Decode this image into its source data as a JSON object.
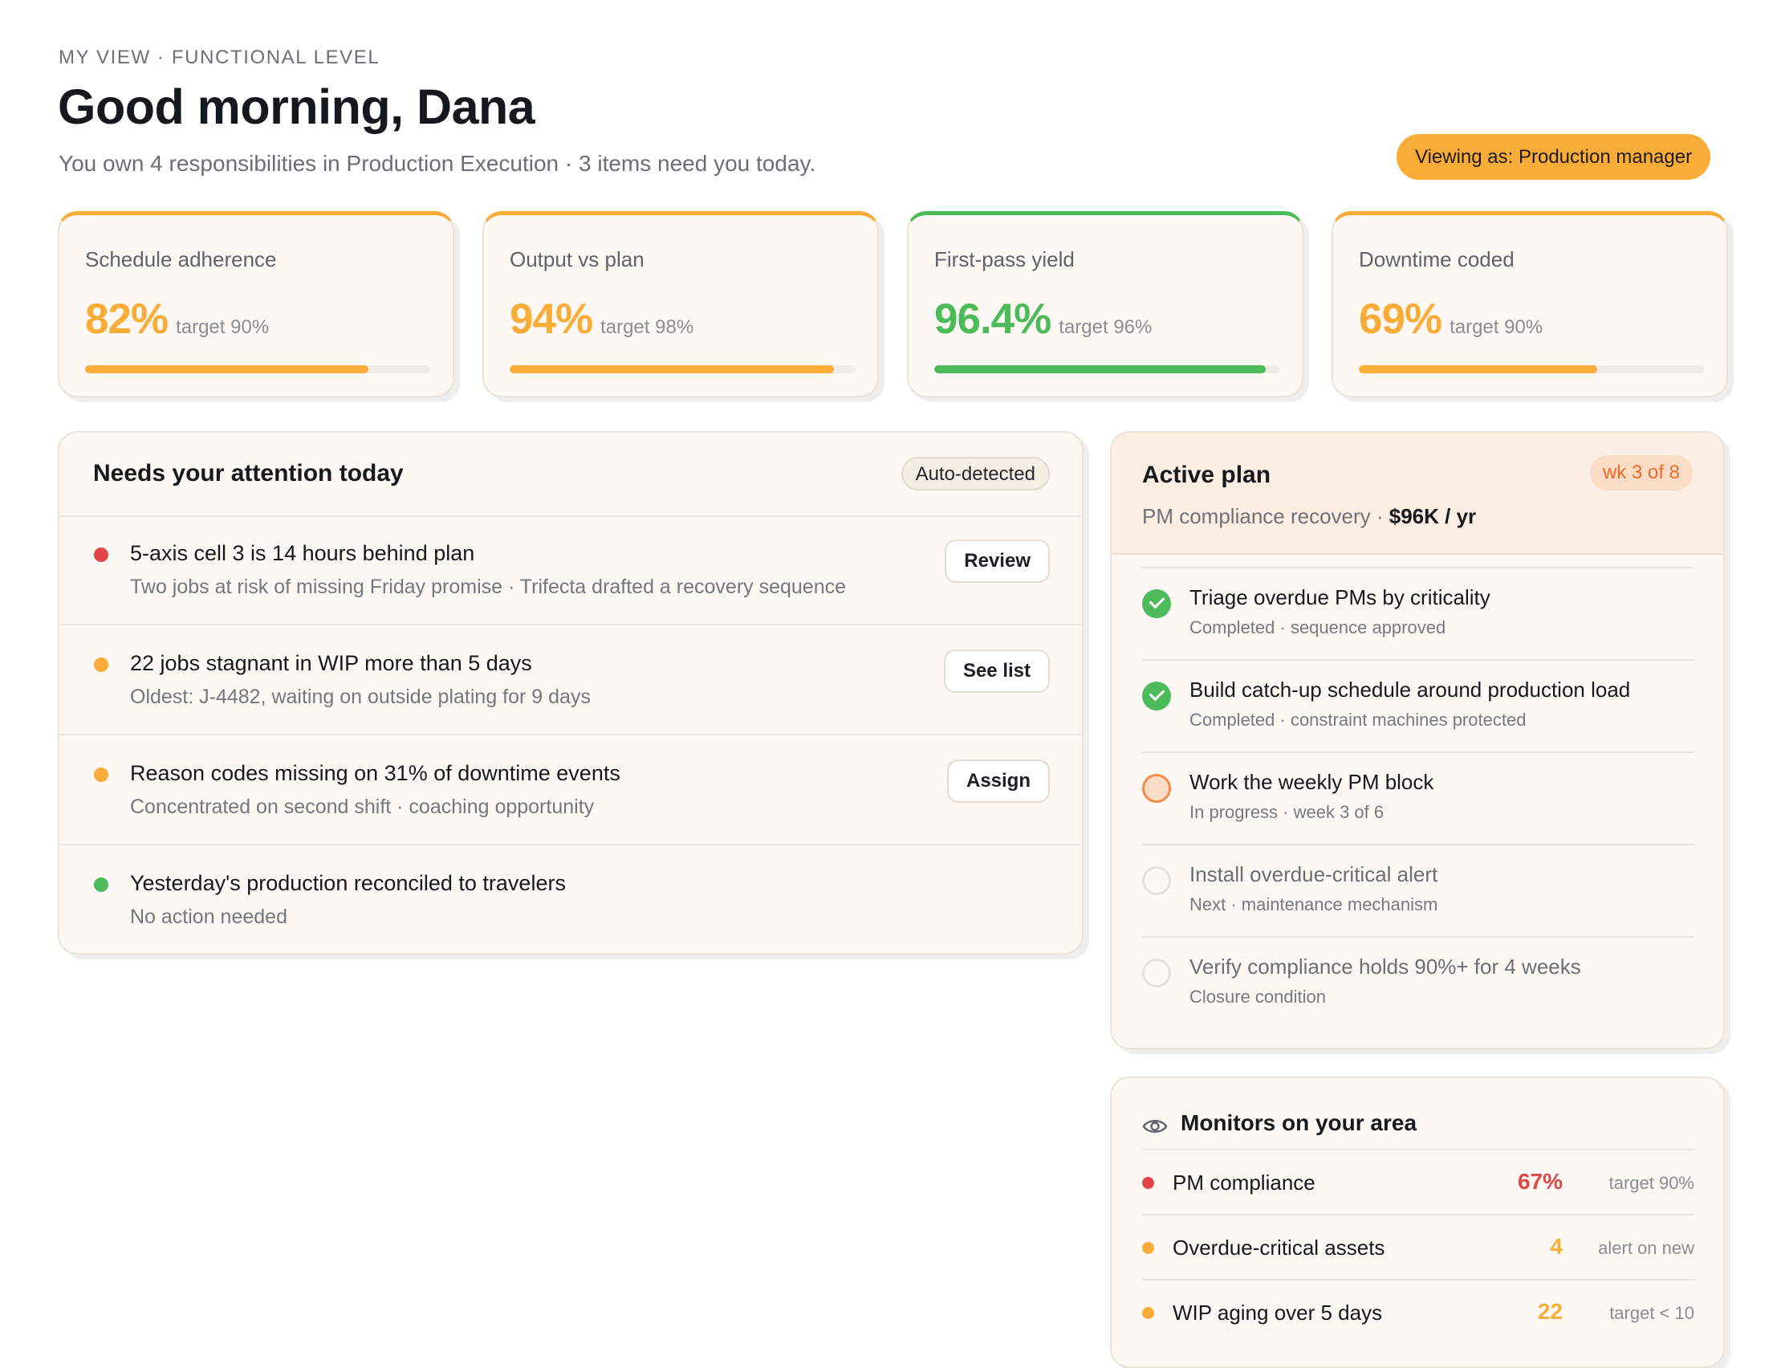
{
  "header": {
    "eyebrow": "MY VIEW · FUNCTIONAL LEVEL",
    "greeting": "Good morning, Dana",
    "subline": "You own 4 responsibilities in Production Execution · 3 items need you today.",
    "viewing_as": "Viewing as: Production manager"
  },
  "kpis": [
    {
      "label": "Schedule adherence",
      "value": "82%",
      "target": "target 90%",
      "progress": 0.82,
      "status": "warning"
    },
    {
      "label": "Output vs plan",
      "value": "94%",
      "target": "target 98%",
      "progress": 0.94,
      "status": "warning"
    },
    {
      "label": "First-pass yield",
      "value": "96.4%",
      "target": "target 96%",
      "progress": 0.96,
      "status": "good"
    },
    {
      "label": "Downtime coded",
      "value": "69%",
      "target": "target 90%",
      "progress": 0.69,
      "status": "warning"
    }
  ],
  "attention": {
    "title": "Needs your attention today",
    "badge": "Auto-detected",
    "items": [
      {
        "title": "5-axis cell 3 is 14 hours behind plan",
        "subtitle": "Two jobs at risk of missing Friday promise · Trifecta drafted a recovery sequence",
        "action": "Review",
        "status_color": "#e04646"
      },
      {
        "title": "22 jobs stagnant in WIP more than 5 days",
        "subtitle": "Oldest: J-4482, waiting on outside plating for 9 days",
        "action": "See list",
        "status_color": "#f9ac38"
      },
      {
        "title": "Reason codes missing on 31% of downtime events",
        "subtitle": "Concentrated on second shift · coaching opportunity",
        "action": "Assign",
        "status_color": "#f9ac38"
      },
      {
        "title": "Yesterday's production reconciled to travelers",
        "subtitle": "No action needed",
        "action": "",
        "status_color": "#4cbb5a"
      }
    ]
  },
  "plan": {
    "title": "Active plan",
    "week_badge": "wk 3 of 8",
    "subtitle_prefix": "PM compliance recovery · ",
    "subtitle_value": "$96K / yr",
    "steps": [
      {
        "title": "Triage overdue PMs by criticality",
        "subtitle": "Completed · sequence approved",
        "state": "done"
      },
      {
        "title": "Build catch-up schedule around production load",
        "subtitle": "Completed · constraint machines protected",
        "state": "done"
      },
      {
        "title": "Work the weekly PM block",
        "subtitle": "In progress · week 3 of 6",
        "state": "progress"
      },
      {
        "title": "Install overdue-critical alert",
        "subtitle": "Next · maintenance mechanism",
        "state": "todo"
      },
      {
        "title": "Verify compliance holds 90%+ for 4 weeks",
        "subtitle": "Closure condition",
        "state": "todo"
      }
    ]
  },
  "monitors": {
    "title": "Monitors on your area",
    "icon": "eye-icon",
    "rows": [
      {
        "name": "PM compliance",
        "value": "67%",
        "target": "target 90%",
        "status_color": "#e04646"
      },
      {
        "name": "Overdue-critical assets",
        "value": "4",
        "target": "alert on new",
        "status_color": "#f9ac38"
      },
      {
        "name": "WIP aging over 5 days",
        "value": "22",
        "target": "target < 10",
        "status_color": "#f9ac38"
      }
    ]
  },
  "colors": {
    "accent": "#f9ac38",
    "good": "#4cbb5a",
    "critical": "#e04646",
    "plan_accent": "#ee6b25"
  }
}
